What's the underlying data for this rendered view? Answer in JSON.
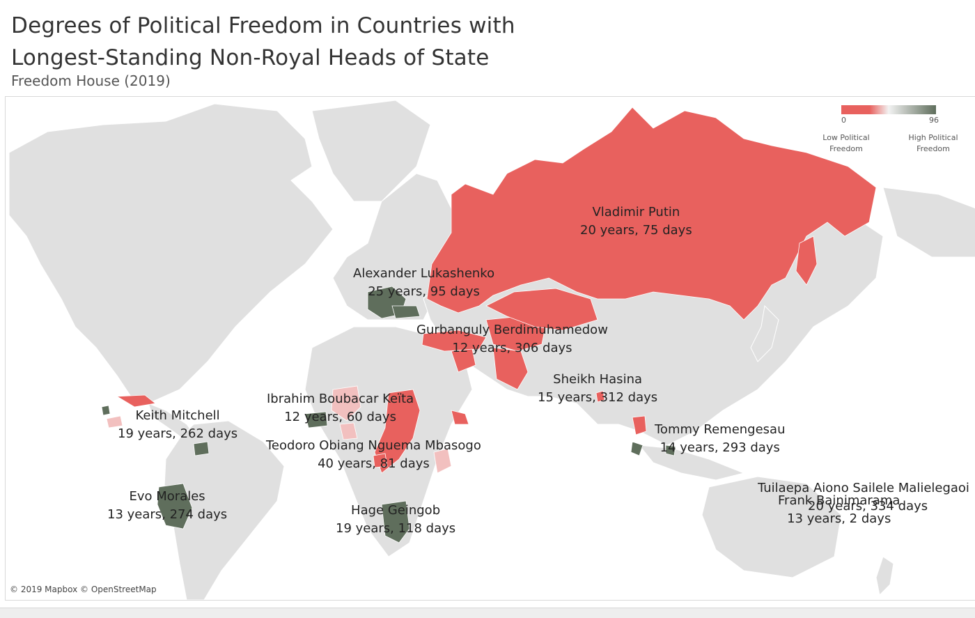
{
  "title_line1": "Degrees of Political Freedom in Countries with",
  "title_line2": "Longest-Standing Non-Royal Heads of State",
  "subtitle": "Freedom House (2019)",
  "legend": {
    "min": "0",
    "max": "96",
    "low_line1": "Low Political",
    "low_line2": "Freedom",
    "high_line1": "High Political",
    "high_line2": "Freedom",
    "color_low": "#e8615e",
    "color_mid": "#f2f2f2",
    "color_high": "#5f6e5c"
  },
  "colors": {
    "land": "#e0e0e0",
    "water": "#ffffff",
    "border": "#ffffff"
  },
  "leaders": [
    {
      "name": "Vladimir Putin",
      "tenure": "20 years, 75 days",
      "freedom": "low"
    },
    {
      "name": "Alexander Lukashenko",
      "tenure": "25 years, 95 days",
      "freedom": "high"
    },
    {
      "name": "Gurbanguly Berdimuhamedow",
      "tenure": "12 years, 306 days",
      "freedom": "low"
    },
    {
      "name": "Sheikh Hasina",
      "tenure": "15 years, 312 days",
      "freedom": "low"
    },
    {
      "name": "Ibrahim Boubacar Keïta",
      "tenure": "12 years, 60 days",
      "freedom": "low"
    },
    {
      "name": "Teodoro Obiang Nguema Mbasogo",
      "tenure": "40 years, 81 days",
      "freedom": "low"
    },
    {
      "name": "Keith Mitchell",
      "tenure": "19 years, 262 days",
      "freedom": "high"
    },
    {
      "name": "Evo Morales",
      "tenure": "13 years, 274 days",
      "freedom": "high"
    },
    {
      "name": "Hage Geingob",
      "tenure": "19 years, 118 days",
      "freedom": "high"
    },
    {
      "name": "Tommy Remengesau",
      "tenure": "14 years, 293 days",
      "freedom": "high"
    },
    {
      "name": "Tuilaepa Aiono Sailele Malielegaoi",
      "tenure": "20 years, 334 days",
      "freedom": "high"
    },
    {
      "name": "Frank Bainimarama",
      "tenure": "13 years, 2 days",
      "freedom": "mid"
    }
  ],
  "credit": "© 2019 Mapbox © OpenStreetMap"
}
